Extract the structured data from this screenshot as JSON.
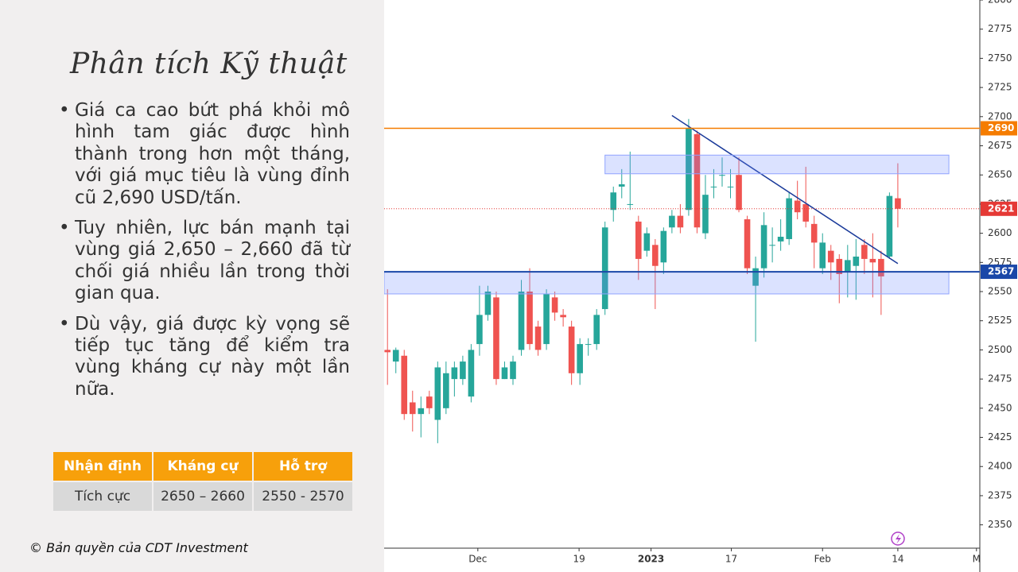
{
  "title": "Phân tích Kỹ thuật",
  "bullets": [
    "Giá ca cao bứt phá khỏi mô hình tam giác được hình thành trong hơn một tháng, với giá mục tiêu là vùng đỉnh cũ 2,690 USD/tấn.",
    "Tuy nhiên, lực bán mạnh tại vùng giá 2,650 – 2,660 đã từ chối giá nhiều lần trong thời gian qua.",
    "Dù vậy, giá được kỳ vọng sẽ tiếp tục tăng để kiểm tra vùng kháng cự này một lần nữa."
  ],
  "table": {
    "headers": [
      "Nhận định",
      "Kháng cự",
      "Hỗ trợ"
    ],
    "rows": [
      [
        "Tích cực",
        "2650 – 2660",
        "2550 - 2570"
      ]
    ]
  },
  "copyright": "© Bản quyền của CDT Investment",
  "chart_data": {
    "type": "candlestick",
    "x": [
      0,
      1,
      2,
      3,
      4,
      5,
      6,
      7,
      8,
      9,
      10,
      11,
      12,
      13,
      14,
      15,
      16,
      17,
      18,
      19,
      20,
      21,
      22,
      23,
      24,
      25,
      26,
      27,
      28,
      29,
      30,
      31,
      32,
      33,
      34,
      35,
      36,
      37,
      38,
      39,
      40,
      41,
      42,
      43,
      44,
      45,
      46,
      47,
      48,
      49,
      50,
      51,
      52,
      53,
      54,
      55,
      56,
      57,
      58,
      59,
      60,
      61
    ],
    "open": [
      2500,
      2490,
      2495,
      2455,
      2445,
      2460,
      2440,
      2450,
      2475,
      2475,
      2460,
      2505,
      2530,
      2545,
      2475,
      2475,
      2500,
      2550,
      2520,
      2505,
      2545,
      2530,
      2520,
      2480,
      2505,
      2505,
      2535,
      2620,
      2640,
      2625,
      2610,
      2585,
      2590,
      2575,
      2605,
      2615,
      2620,
      2685,
      2600,
      2640,
      2650,
      2640,
      2650,
      2612,
      2555,
      2570,
      2590,
      2593,
      2595,
      2628,
      2625,
      2608,
      2570,
      2585,
      2578,
      2567,
      2572,
      2590,
      2578,
      2578,
      2580,
      2630
    ],
    "high": [
      2552,
      2502,
      2500,
      2465,
      2460,
      2465,
      2490,
      2490,
      2490,
      2495,
      2505,
      2555,
      2555,
      2550,
      2490,
      2495,
      2560,
      2570,
      2525,
      2552,
      2550,
      2535,
      2525,
      2510,
      2510,
      2535,
      2610,
      2640,
      2655,
      2670,
      2615,
      2605,
      2595,
      2605,
      2620,
      2625,
      2698,
      2688,
      2650,
      2655,
      2665,
      2655,
      2665,
      2615,
      2580,
      2618,
      2605,
      2612,
      2635,
      2645,
      2657,
      2615,
      2600,
      2590,
      2582,
      2590,
      2595,
      2595,
      2600,
      2585,
      2635,
      2660
    ],
    "low": [
      2470,
      2480,
      2440,
      2430,
      2425,
      2445,
      2420,
      2445,
      2460,
      2470,
      2455,
      2495,
      2525,
      2470,
      2475,
      2470,
      2495,
      2500,
      2495,
      2500,
      2525,
      2520,
      2470,
      2470,
      2495,
      2500,
      2530,
      2610,
      2630,
      2620,
      2560,
      2580,
      2535,
      2565,
      2600,
      2600,
      2615,
      2600,
      2595,
      2630,
      2640,
      2630,
      2618,
      2565,
      2507,
      2562,
      2575,
      2585,
      2590,
      2612,
      2605,
      2570,
      2565,
      2560,
      2540,
      2545,
      2543,
      2565,
      2545,
      2530,
      2578,
      2605
    ],
    "close": [
      2498,
      2500,
      2445,
      2445,
      2450,
      2450,
      2485,
      2480,
      2485,
      2490,
      2500,
      2530,
      2550,
      2475,
      2485,
      2490,
      2550,
      2505,
      2500,
      2548,
      2532,
      2528,
      2480,
      2505,
      2505,
      2530,
      2605,
      2635,
      2642,
      2625,
      2578,
      2600,
      2572,
      2602,
      2615,
      2605,
      2690,
      2605,
      2633,
      2640,
      2650,
      2640,
      2620,
      2570,
      2570,
      2607,
      2590,
      2597,
      2630,
      2618,
      2610,
      2592,
      2592,
      2575,
      2565,
      2577,
      2580,
      2578,
      2575,
      2563,
      2632,
      2621
    ],
    "up_color": "#26a69a",
    "down_color": "#ef5350",
    "xlim": [
      -0.4,
      70.8
    ],
    "xticks": [
      {
        "value": 10.8,
        "label": "Dec"
      },
      {
        "value": 22.9,
        "label": "19"
      },
      {
        "value": 31.5,
        "label": "2023"
      },
      {
        "value": 41.1,
        "label": "17"
      },
      {
        "value": 52.0,
        "label": "Feb"
      },
      {
        "value": 61,
        "label": "14"
      },
      {
        "value": 70.4,
        "label": "M"
      }
    ],
    "ylim": [
      2330,
      2800
    ],
    "yticks": [
      2350,
      2375,
      2400,
      2425,
      2450,
      2475,
      2500,
      2525,
      2550,
      2575,
      2600,
      2625,
      2650,
      2675,
      2700,
      2725,
      2750,
      2775,
      2800
    ],
    "levels": [
      {
        "value": 2690,
        "color": "#f57c00",
        "style": "solid"
      },
      {
        "value": 2621,
        "color": "#e53935",
        "style": "dotted"
      },
      {
        "value": 2567,
        "color": "#1a47a8",
        "style": "solid"
      }
    ],
    "zones": [
      {
        "low": 2651,
        "high": 2667,
        "x": [
          26,
          67.1
        ]
      },
      {
        "low": 2548,
        "high": 2567,
        "x": [
          -0.4,
          67.1
        ]
      }
    ],
    "trendline": {
      "x": [
        34,
        61
      ],
      "y": [
        2701,
        2574
      ],
      "color": "#1a3a9a"
    }
  }
}
